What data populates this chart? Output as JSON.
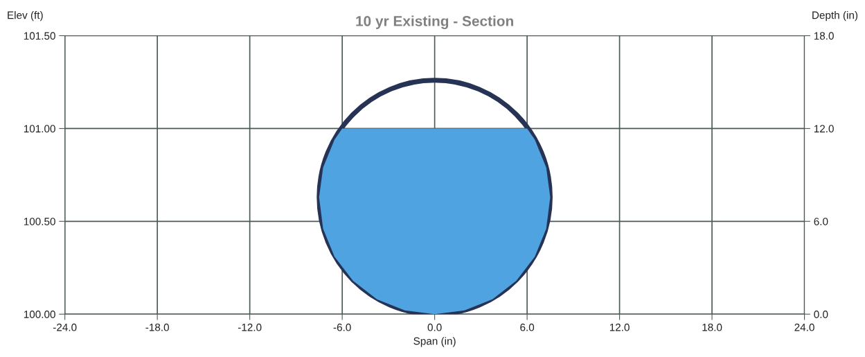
{
  "chart_data": {
    "type": "area",
    "title": "10 yr Existing - Section",
    "xlabel": "Span (in)",
    "ylabel": "Elev (ft)",
    "y2label": "Depth (in)",
    "xlim": [
      -24,
      24
    ],
    "xticks": [
      {
        "value": -24,
        "label": "-24.0"
      },
      {
        "value": -18,
        "label": "-18.0"
      },
      {
        "value": -12,
        "label": "-12.0"
      },
      {
        "value": -6,
        "label": "-6.0"
      },
      {
        "value": 0,
        "label": "0.0"
      },
      {
        "value": 6,
        "label": "6.0"
      },
      {
        "value": 12,
        "label": "12.0"
      },
      {
        "value": 18,
        "label": "18.0"
      },
      {
        "value": 24,
        "label": "24.0"
      }
    ],
    "ylim": [
      100.0,
      101.5
    ],
    "yticks": [
      {
        "value": 100.0,
        "label": "100.00"
      },
      {
        "value": 100.5,
        "label": "100.50"
      },
      {
        "value": 101.0,
        "label": "101.00"
      },
      {
        "value": 101.5,
        "label": "101.50"
      }
    ],
    "y2lim": [
      0,
      18
    ],
    "y2ticks": [
      {
        "value": 0,
        "label": "0.0"
      },
      {
        "value": 6,
        "label": "6.0"
      },
      {
        "value": 12,
        "label": "12.0"
      },
      {
        "value": 18,
        "label": "18.0"
      }
    ],
    "grid": true,
    "legend": false,
    "series": [
      {
        "color": "#4fa3e0",
        "x": [
          -6.0,
          6.0,
          6.5,
          7.24,
          7.5,
          7.24,
          6.5,
          5.3,
          3.75,
          1.94,
          0.0,
          -1.94,
          -3.75,
          -5.3,
          -6.5,
          -7.24,
          -7.5,
          -7.24,
          -6.5
        ],
        "values": [
          101.0,
          101.0,
          100.94,
          100.79,
          100.63,
          100.46,
          100.31,
          100.18,
          100.08,
          100.02,
          100.0,
          100.02,
          100.08,
          100.18,
          100.31,
          100.46,
          100.63,
          100.79,
          100.94
        ]
      }
    ]
  }
}
